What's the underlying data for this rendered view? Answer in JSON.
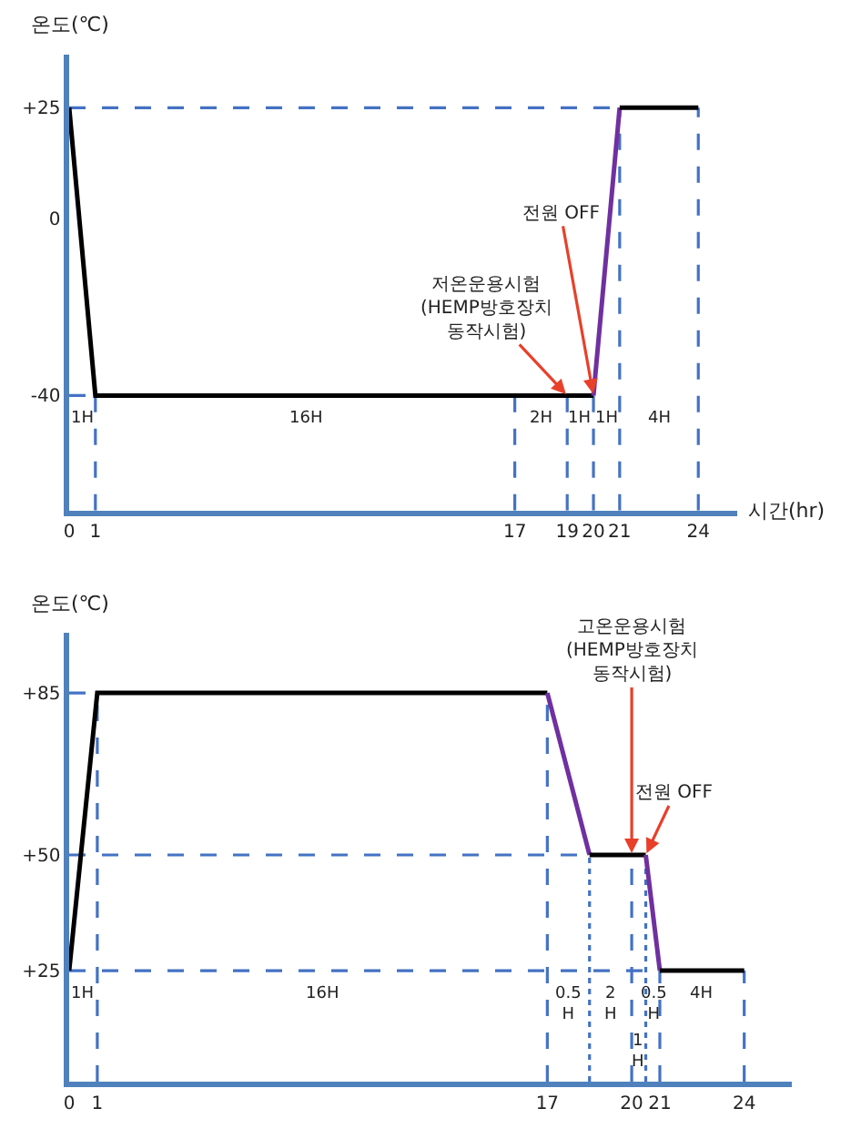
{
  "chart_data": [
    {
      "type": "line",
      "ylabel": "온도(℃)",
      "xlabel": "시간(hr)",
      "xlim": [
        0,
        25.5
      ],
      "ylim": [
        -66,
        37
      ],
      "xticks": [
        0,
        1,
        17,
        19,
        20,
        21,
        24
      ],
      "yticks": [
        -40,
        0,
        {
          "value": 25,
          "label": "+25"
        }
      ],
      "series": [
        {
          "color": "#000000",
          "x": [
            0,
            1,
            20
          ],
          "values": [
            25,
            -40,
            -40
          ]
        },
        {
          "color": "#7030a0",
          "x": [
            20,
            21
          ],
          "values": [
            -40,
            25
          ]
        },
        {
          "color": "#000000",
          "x": [
            21,
            24
          ],
          "values": [
            25,
            25
          ]
        }
      ],
      "ref_lines": [
        {
          "axis": "y",
          "value": 25,
          "color": "#4472c4",
          "line_style": "dashed"
        },
        {
          "axis": "y",
          "value": -40,
          "color": "#4472c4",
          "line_style": "dashed"
        },
        {
          "axis": "x",
          "value": 1,
          "color": "#4472c4",
          "line_style": "dashed"
        },
        {
          "axis": "x",
          "value": 17,
          "color": "#4472c4",
          "line_style": "dashed"
        },
        {
          "axis": "x",
          "value": 19,
          "color": "#4472c4",
          "line_style": "dashed"
        },
        {
          "axis": "x",
          "value": 20,
          "color": "#4472c4",
          "line_style": "dashed"
        },
        {
          "axis": "x",
          "value": 21,
          "color": "#4472c4",
          "line_style": "dashed"
        },
        {
          "axis": "x",
          "value": 24,
          "color": "#4472c4",
          "line_style": "dashed"
        }
      ],
      "annotations": [
        {
          "text": "저온운용시험\n(HEMP방호장치\n동작시험)",
          "x": 19,
          "y": -40
        },
        {
          "text": "전원 OFF",
          "x": 20,
          "y": -40
        },
        "1H",
        "16H",
        "2H",
        "1H",
        "1H",
        "4H"
      ]
    },
    {
      "type": "line",
      "ylabel": "온도(℃)",
      "xlim": [
        0,
        25.7
      ],
      "ylim": [
        1,
        98
      ],
      "xticks": [
        0,
        1,
        17,
        20,
        21,
        24
      ],
      "yticks": [
        {
          "value": 25,
          "label": "+25"
        },
        {
          "value": 50,
          "label": "+50"
        },
        {
          "value": 85,
          "label": "+85"
        }
      ],
      "series": [
        {
          "color": "#000000",
          "x": [
            0,
            1,
            17
          ],
          "values": [
            25,
            85,
            85
          ]
        },
        {
          "color": "#7030a0",
          "x": [
            17,
            18.5
          ],
          "values": [
            85,
            50
          ]
        },
        {
          "color": "#000000",
          "x": [
            18.5,
            20.5
          ],
          "values": [
            50,
            50
          ]
        },
        {
          "color": "#7030a0",
          "x": [
            20.5,
            21
          ],
          "values": [
            50,
            25
          ]
        },
        {
          "color": "#000000",
          "x": [
            21,
            24
          ],
          "values": [
            25,
            25
          ]
        }
      ],
      "ref_lines": [
        {
          "axis": "y",
          "value": 85,
          "color": "#4472c4",
          "line_style": "dashed"
        },
        {
          "axis": "y",
          "value": 50,
          "color": "#4472c4",
          "line_style": "dashed"
        },
        {
          "axis": "y",
          "value": 25,
          "color": "#4472c4",
          "line_style": "dashed"
        },
        {
          "axis": "x",
          "value": 1,
          "color": "#4472c4",
          "line_style": "dashed"
        },
        {
          "axis": "x",
          "value": 17,
          "color": "#4472c4",
          "line_style": "dashed"
        },
        {
          "axis": "x",
          "value": 18.5,
          "color": "#4472c4",
          "line_style": "dotted"
        },
        {
          "axis": "x",
          "value": 20,
          "color": "#4472c4",
          "line_style": "dashed"
        },
        {
          "axis": "x",
          "value": 20.5,
          "color": "#4472c4",
          "line_style": "dotted"
        },
        {
          "axis": "x",
          "value": 21,
          "color": "#4472c4",
          "line_style": "dashed"
        },
        {
          "axis": "x",
          "value": 24,
          "color": "#4472c4",
          "line_style": "dashed"
        }
      ],
      "annotations": [
        {
          "text": "고온운용시험\n(HEMP방호장치\n동작시험)",
          "x": 20,
          "y": 50
        },
        {
          "text": "전원 OFF",
          "x": 20.5,
          "y": 50
        },
        "1H",
        "16H",
        "0.5\nH",
        "2\nH",
        "1\nH",
        "0.5\nH",
        "4H"
      ]
    }
  ]
}
